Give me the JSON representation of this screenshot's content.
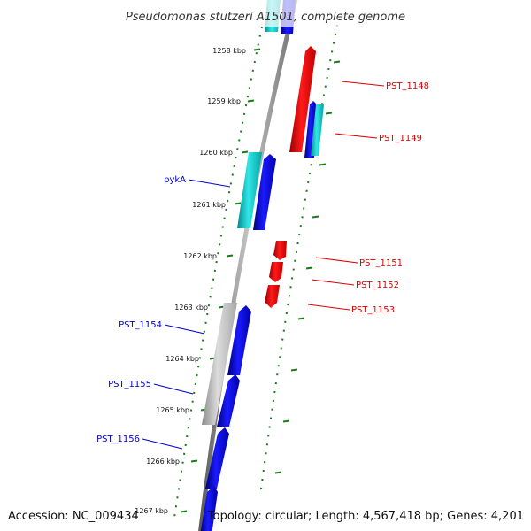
{
  "title": "Pseudomonas stutzeri A1501, complete genome",
  "footer": {
    "accession": "Accession: NC_009434",
    "topology": "Topology: circular; Length: 4,567,418 bp; Genes: 4,201"
  },
  "colors": {
    "forward_label": "#0000cc",
    "reverse_label": "#dd0000",
    "tick": "#1a7a1a",
    "backbone": "#8a8a8a"
  },
  "ticks": [
    {
      "label": "1258 kbp"
    },
    {
      "label": "1259 kbp"
    },
    {
      "label": "1260 kbp"
    },
    {
      "label": "1261 kbp"
    },
    {
      "label": "1262 kbp"
    },
    {
      "label": "1263 kbp"
    },
    {
      "label": "1264 kbp"
    },
    {
      "label": "1265 kbp"
    },
    {
      "label": "1266 kbp"
    },
    {
      "label": "1267 kbp"
    }
  ],
  "gene_labels": {
    "forward": [
      "pykA",
      "PST_1154",
      "PST_1155",
      "PST_1156"
    ],
    "reverse": [
      "PST_1148",
      "PST_1149",
      "PST_1151",
      "PST_1152",
      "PST_1153"
    ]
  }
}
